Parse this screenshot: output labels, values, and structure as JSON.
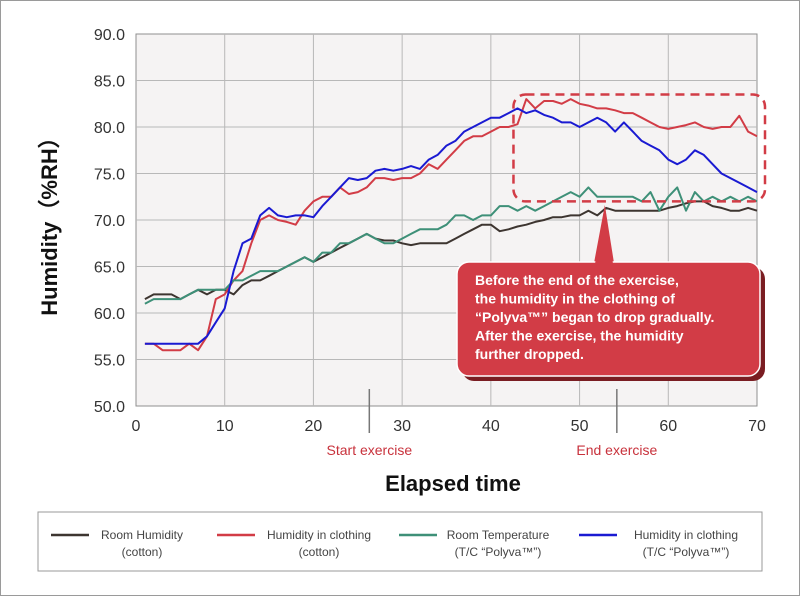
{
  "chart_data": {
    "type": "line",
    "title": "",
    "xlabel": "Elapsed time",
    "ylabel": "Humidity（%RH）",
    "xlim": [
      0,
      70
    ],
    "ylim": [
      50,
      90
    ],
    "x_ticks": [
      "0",
      "10",
      "20",
      "30",
      "40",
      "50",
      "60",
      "70"
    ],
    "y_ticks": [
      "50.0",
      "55.0",
      "60.0",
      "65.0",
      "70.0",
      "75.0",
      "80.0",
      "85.0",
      "90.0"
    ],
    "grid": true,
    "legend_position": "bottom",
    "events": [
      {
        "x": 26.3,
        "label": "Start exercise"
      },
      {
        "x": 54.2,
        "label": "End exercise"
      }
    ],
    "annotation": {
      "lines": [
        "Before the end of the exercise,",
        "the humidity in the clothing of",
        "“Polyva™” began to drop gradually.",
        "After the exercise, the humidity",
        "further dropped."
      ],
      "highlight_x": [
        43,
        70
      ],
      "highlight_y": [
        72,
        83.5
      ]
    },
    "series": [
      {
        "name": "Room Humidity (cotton)",
        "legend_lines": [
          "Room Humidity",
          "(cotton)"
        ],
        "color": "#3d3530",
        "points": [
          [
            1,
            61.5
          ],
          [
            2,
            62
          ],
          [
            3,
            62
          ],
          [
            4,
            62
          ],
          [
            5,
            61.5
          ],
          [
            6,
            62
          ],
          [
            7,
            62.5
          ],
          [
            8,
            62
          ],
          [
            9,
            62.5
          ],
          [
            10,
            62.5
          ],
          [
            11,
            62
          ],
          [
            12,
            63
          ],
          [
            13,
            63.5
          ],
          [
            14,
            63.5
          ],
          [
            15,
            64
          ],
          [
            16,
            64.5
          ],
          [
            17,
            65
          ],
          [
            18,
            65.5
          ],
          [
            19,
            66
          ],
          [
            20,
            65.5
          ],
          [
            21,
            66
          ],
          [
            22,
            66.5
          ],
          [
            23,
            67
          ],
          [
            24,
            67.5
          ],
          [
            25,
            68
          ],
          [
            26,
            68.5
          ],
          [
            27,
            68
          ],
          [
            28,
            67.8
          ],
          [
            29,
            67.8
          ],
          [
            30,
            67.5
          ],
          [
            31,
            67.3
          ],
          [
            32,
            67.5
          ],
          [
            33,
            67.5
          ],
          [
            34,
            67.5
          ],
          [
            35,
            67.5
          ],
          [
            36,
            68
          ],
          [
            37,
            68.5
          ],
          [
            38,
            69
          ],
          [
            39,
            69.5
          ],
          [
            40,
            69.5
          ],
          [
            41,
            68.8
          ],
          [
            42,
            69
          ],
          [
            43,
            69.3
          ],
          [
            44,
            69.5
          ],
          [
            45,
            69.8
          ],
          [
            46,
            70
          ],
          [
            47,
            70.3
          ],
          [
            48,
            70.3
          ],
          [
            49,
            70.5
          ],
          [
            50,
            70.5
          ],
          [
            51,
            71
          ],
          [
            52,
            70.5
          ],
          [
            53,
            71.3
          ],
          [
            54,
            71
          ],
          [
            55,
            71
          ],
          [
            56,
            71
          ],
          [
            57,
            71
          ],
          [
            58,
            71
          ],
          [
            59,
            71
          ],
          [
            60,
            71.3
          ],
          [
            61,
            71.5
          ],
          [
            62,
            71.8
          ],
          [
            63,
            72
          ],
          [
            64,
            72
          ],
          [
            65,
            71.5
          ],
          [
            66,
            71.3
          ],
          [
            67,
            71
          ],
          [
            68,
            71
          ],
          [
            69,
            71.3
          ],
          [
            70,
            71
          ]
        ]
      },
      {
        "name": "Humidity in clothing (cotton)",
        "legend_lines": [
          "Humidity in clothing",
          "(cotton)"
        ],
        "color": "#d23c46",
        "points": [
          [
            1,
            56.7
          ],
          [
            2,
            56.7
          ],
          [
            3,
            56
          ],
          [
            4,
            56
          ],
          [
            5,
            56
          ],
          [
            6,
            56.7
          ],
          [
            7,
            56
          ],
          [
            8,
            57.5
          ],
          [
            9,
            61.5
          ],
          [
            10,
            62
          ],
          [
            11,
            63.5
          ],
          [
            12,
            64.5
          ],
          [
            13,
            67.5
          ],
          [
            14,
            70
          ],
          [
            15,
            70.5
          ],
          [
            16,
            70
          ],
          [
            17,
            69.8
          ],
          [
            18,
            69.5
          ],
          [
            19,
            71
          ],
          [
            20,
            72
          ],
          [
            21,
            72.5
          ],
          [
            22,
            72.5
          ],
          [
            23,
            73.5
          ],
          [
            24,
            72.8
          ],
          [
            25,
            73
          ],
          [
            26,
            73.5
          ],
          [
            27,
            74.5
          ],
          [
            28,
            74.5
          ],
          [
            29,
            74.3
          ],
          [
            30,
            74.5
          ],
          [
            31,
            74.5
          ],
          [
            32,
            75
          ],
          [
            33,
            76
          ],
          [
            34,
            75.5
          ],
          [
            35,
            76.5
          ],
          [
            36,
            77.5
          ],
          [
            37,
            78.5
          ],
          [
            38,
            79
          ],
          [
            39,
            79
          ],
          [
            40,
            79.5
          ],
          [
            41,
            80
          ],
          [
            42,
            80
          ],
          [
            43,
            80.3
          ],
          [
            44,
            83
          ],
          [
            45,
            82
          ],
          [
            46,
            82.8
          ],
          [
            47,
            82.8
          ],
          [
            48,
            82.5
          ],
          [
            49,
            83
          ],
          [
            50,
            82.5
          ],
          [
            51,
            82.3
          ],
          [
            52,
            82
          ],
          [
            53,
            82
          ],
          [
            54,
            81.8
          ],
          [
            55,
            81.5
          ],
          [
            56,
            81.5
          ],
          [
            57,
            81
          ],
          [
            58,
            80.5
          ],
          [
            59,
            80
          ],
          [
            60,
            79.8
          ],
          [
            61,
            80
          ],
          [
            62,
            80.2
          ],
          [
            63,
            80.5
          ],
          [
            64,
            80
          ],
          [
            65,
            79.8
          ],
          [
            66,
            80
          ],
          [
            67,
            80
          ],
          [
            68,
            81.2
          ],
          [
            69,
            79.5
          ],
          [
            70,
            79
          ]
        ]
      },
      {
        "name": "Room Temperature (T/C “Polyva™”)",
        "legend_lines": [
          "Room Temperature",
          "(T/C “Polyva™”)"
        ],
        "color": "#3e9078",
        "points": [
          [
            1,
            61
          ],
          [
            2,
            61.5
          ],
          [
            3,
            61.5
          ],
          [
            4,
            61.5
          ],
          [
            5,
            61.5
          ],
          [
            6,
            62
          ],
          [
            7,
            62.5
          ],
          [
            8,
            62.5
          ],
          [
            9,
            62.5
          ],
          [
            10,
            62.5
          ],
          [
            11,
            63.5
          ],
          [
            12,
            63.5
          ],
          [
            13,
            64
          ],
          [
            14,
            64.5
          ],
          [
            15,
            64.5
          ],
          [
            16,
            64.5
          ],
          [
            17,
            65
          ],
          [
            18,
            65.5
          ],
          [
            19,
            66
          ],
          [
            20,
            65.5
          ],
          [
            21,
            66.5
          ],
          [
            22,
            66.5
          ],
          [
            23,
            67.5
          ],
          [
            24,
            67.5
          ],
          [
            25,
            68
          ],
          [
            26,
            68.5
          ],
          [
            27,
            68
          ],
          [
            28,
            67.5
          ],
          [
            29,
            67.5
          ],
          [
            30,
            68
          ],
          [
            31,
            68.5
          ],
          [
            32,
            69
          ],
          [
            33,
            69
          ],
          [
            34,
            69
          ],
          [
            35,
            69.5
          ],
          [
            36,
            70.5
          ],
          [
            37,
            70.5
          ],
          [
            38,
            70
          ],
          [
            39,
            70.5
          ],
          [
            40,
            70.5
          ],
          [
            41,
            71.5
          ],
          [
            42,
            71.5
          ],
          [
            43,
            71
          ],
          [
            44,
            71.5
          ],
          [
            45,
            71
          ],
          [
            46,
            71.5
          ],
          [
            47,
            72
          ],
          [
            48,
            72.5
          ],
          [
            49,
            73
          ],
          [
            50,
            72.5
          ],
          [
            51,
            73.5
          ],
          [
            52,
            72.5
          ],
          [
            53,
            72.5
          ],
          [
            54,
            72.5
          ],
          [
            55,
            72.5
          ],
          [
            56,
            72.5
          ],
          [
            57,
            72
          ],
          [
            58,
            73
          ],
          [
            59,
            71
          ],
          [
            60,
            72.5
          ],
          [
            61,
            73.5
          ],
          [
            62,
            71
          ],
          [
            63,
            73
          ],
          [
            64,
            72
          ],
          [
            65,
            72.5
          ],
          [
            66,
            72
          ],
          [
            67,
            72.5
          ],
          [
            68,
            72
          ],
          [
            69,
            72.5
          ],
          [
            70,
            72
          ]
        ]
      },
      {
        "name": "Humidity in clothing (T/C “Polyva™”)",
        "legend_lines": [
          "Humidity in clothing",
          "(T/C “Polyva™”)"
        ],
        "color": "#1a1ad2",
        "points": [
          [
            1,
            56.7
          ],
          [
            2,
            56.7
          ],
          [
            3,
            56.7
          ],
          [
            4,
            56.7
          ],
          [
            5,
            56.7
          ],
          [
            6,
            56.7
          ],
          [
            7,
            56.7
          ],
          [
            8,
            57.5
          ],
          [
            9,
            59
          ],
          [
            10,
            60.5
          ],
          [
            11,
            64.5
          ],
          [
            12,
            67.5
          ],
          [
            13,
            68
          ],
          [
            14,
            70.5
          ],
          [
            15,
            71.3
          ],
          [
            16,
            70.5
          ],
          [
            17,
            70.3
          ],
          [
            18,
            70.5
          ],
          [
            19,
            70.5
          ],
          [
            20,
            70.3
          ],
          [
            21,
            71.5
          ],
          [
            22,
            72.5
          ],
          [
            23,
            73.5
          ],
          [
            24,
            74.5
          ],
          [
            25,
            74.3
          ],
          [
            26,
            74.5
          ],
          [
            27,
            75.3
          ],
          [
            28,
            75.5
          ],
          [
            29,
            75.3
          ],
          [
            30,
            75.5
          ],
          [
            31,
            75.8
          ],
          [
            32,
            75.5
          ],
          [
            33,
            76.5
          ],
          [
            34,
            77
          ],
          [
            35,
            78
          ],
          [
            36,
            78.5
          ],
          [
            37,
            79.5
          ],
          [
            38,
            80
          ],
          [
            39,
            80.5
          ],
          [
            40,
            81
          ],
          [
            41,
            81
          ],
          [
            42,
            81.5
          ],
          [
            43,
            82
          ],
          [
            44,
            81.5
          ],
          [
            45,
            81.8
          ],
          [
            46,
            81.3
          ],
          [
            47,
            81
          ],
          [
            48,
            80.5
          ],
          [
            49,
            80.5
          ],
          [
            50,
            80
          ],
          [
            51,
            80.5
          ],
          [
            52,
            81
          ],
          [
            53,
            80.5
          ],
          [
            54,
            79.5
          ],
          [
            55,
            80.5
          ],
          [
            56,
            79.5
          ],
          [
            57,
            78.5
          ],
          [
            58,
            78
          ],
          [
            59,
            77.5
          ],
          [
            60,
            76.5
          ],
          [
            61,
            76
          ],
          [
            62,
            76.5
          ],
          [
            63,
            77.5
          ],
          [
            64,
            77
          ],
          [
            65,
            76
          ],
          [
            66,
            75
          ],
          [
            67,
            74.5
          ],
          [
            68,
            74
          ],
          [
            69,
            73.5
          ],
          [
            70,
            73
          ]
        ]
      }
    ]
  }
}
